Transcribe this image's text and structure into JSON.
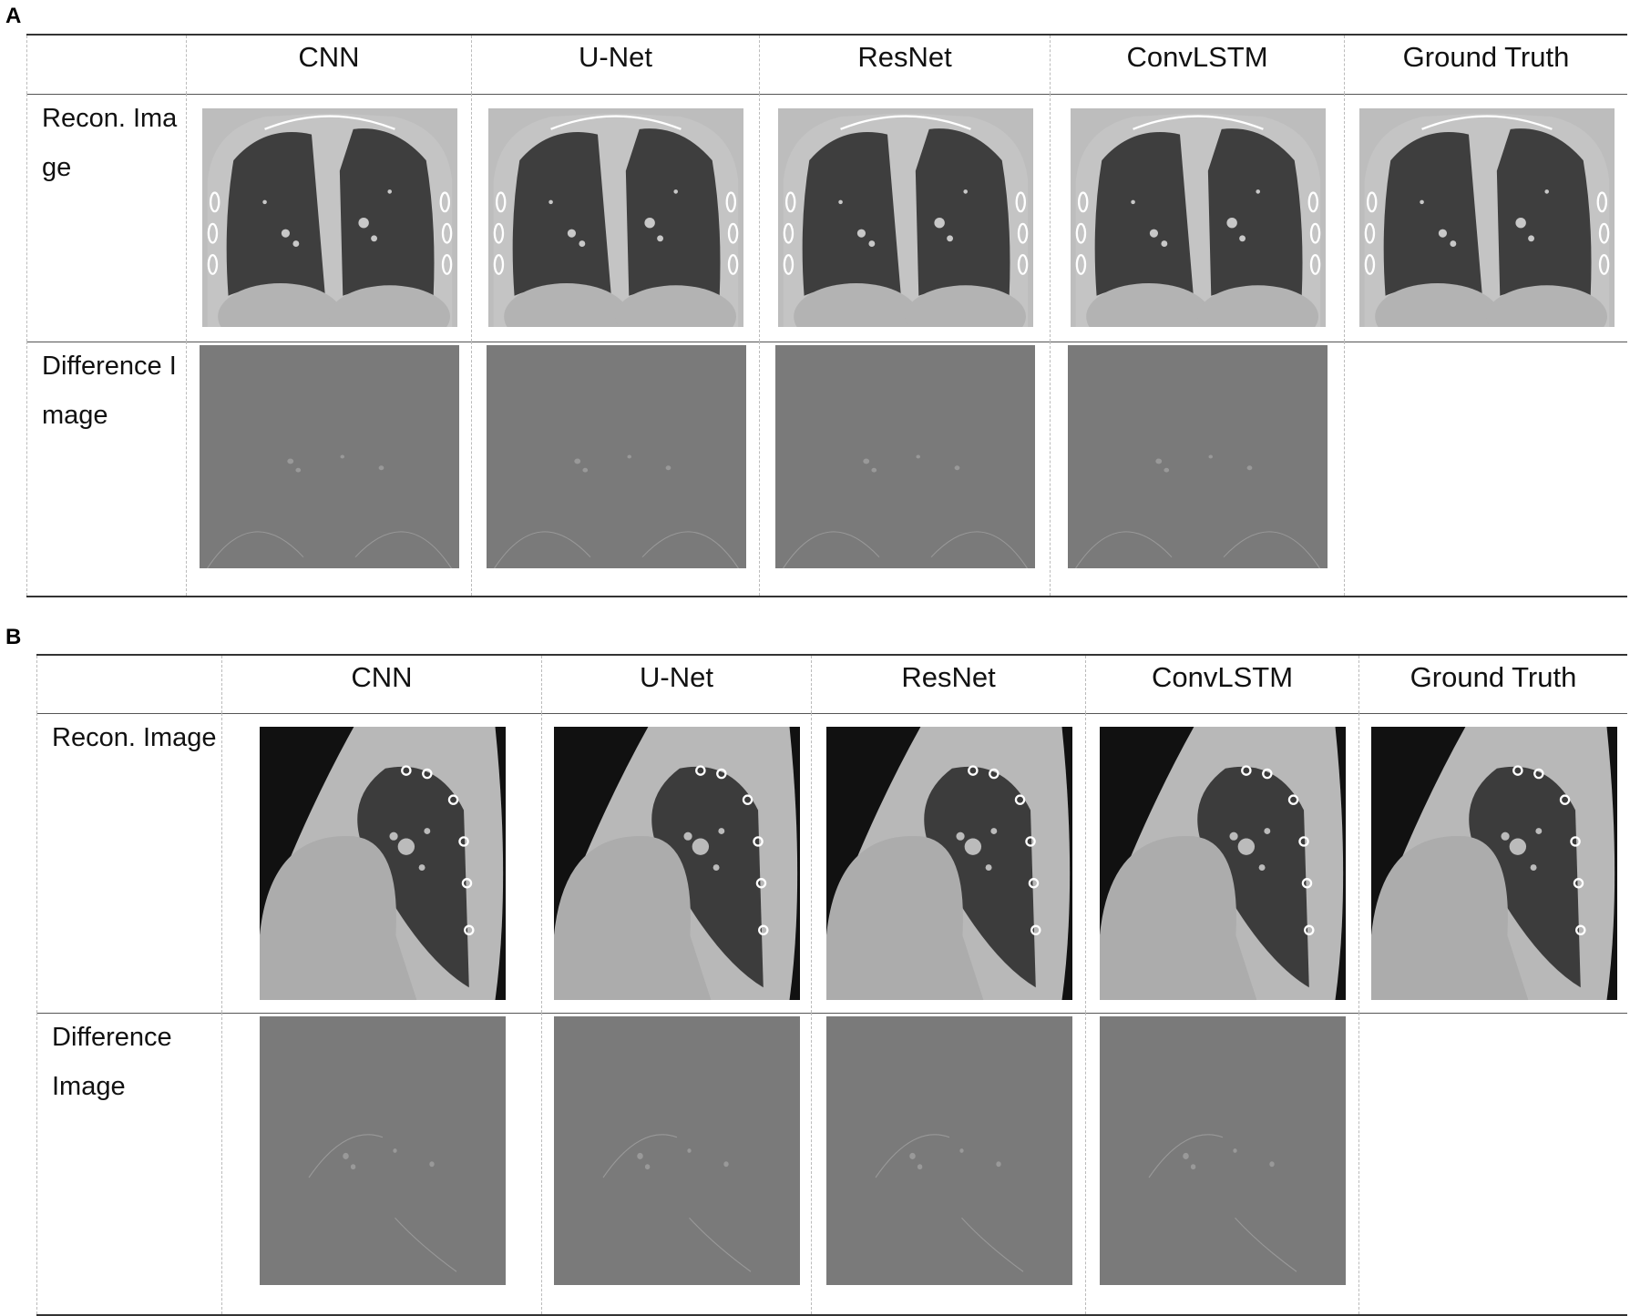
{
  "panels": [
    {
      "label": "A",
      "columns": [
        "CNN",
        "U-Net",
        "ResNet",
        "ConvLSTM",
        "Ground Truth"
      ],
      "rows": [
        "Recon. Image",
        "Difference Image"
      ]
    },
    {
      "label": "B",
      "columns": [
        "CNN",
        "U-Net",
        "ResNet",
        "ConvLSTM",
        "Ground Truth"
      ],
      "rows": [
        "Recon. Image",
        "Difference Image"
      ]
    }
  ]
}
